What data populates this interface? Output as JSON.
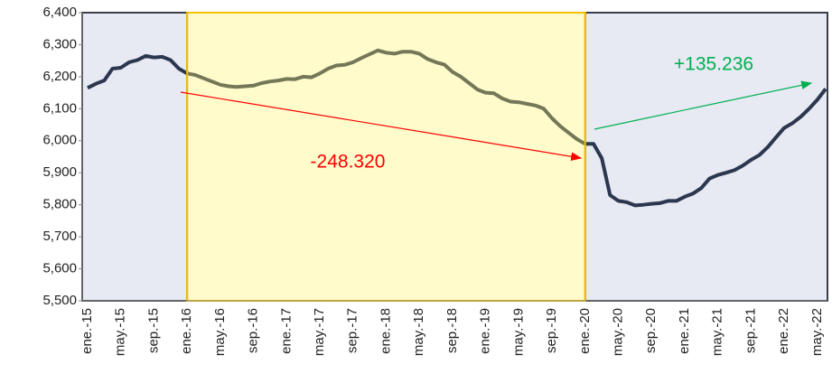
{
  "chart_data": {
    "type": "line",
    "categories": [
      "ene.-15",
      null,
      null,
      null,
      "may.-15",
      null,
      null,
      null,
      "sep.-15",
      null,
      null,
      null,
      "ene.-16",
      null,
      null,
      null,
      "may.-16",
      null,
      null,
      null,
      "sep.-16",
      null,
      null,
      null,
      "ene.-17",
      null,
      null,
      null,
      "may.-17",
      null,
      null,
      null,
      "sep.-17",
      null,
      null,
      null,
      "ene.-18",
      null,
      null,
      null,
      "may.-18",
      null,
      null,
      null,
      "sep.-18",
      null,
      null,
      null,
      "ene.-19",
      null,
      null,
      null,
      "may.-19",
      null,
      null,
      null,
      "sep.-19",
      null,
      null,
      null,
      "ene.-20",
      null,
      null,
      null,
      "may.-20",
      null,
      null,
      null,
      "sep.-20",
      null,
      null,
      null,
      "ene.-21",
      null,
      null,
      null,
      "may.-21",
      null,
      null,
      null,
      "sep.-21",
      null,
      null,
      null,
      "ene.-22",
      null,
      null,
      null,
      "may.-22",
      null
    ],
    "series": [
      {
        "color": "#2b374f",
        "values": [
          6165,
          6178,
          6188,
          6225,
          6228,
          6245,
          6252,
          6265,
          6260,
          6262,
          6252,
          6225,
          6210,
          6205,
          6195,
          6185,
          6175,
          6170,
          6168,
          6170,
          6172,
          6180,
          6185,
          6188,
          6193,
          6192,
          6200,
          6198,
          6210,
          6225,
          6235,
          6237,
          6245,
          6258,
          6270,
          6282,
          6275,
          6272,
          6278,
          6278,
          6272,
          6255,
          6245,
          6238,
          6215,
          6200,
          6180,
          6160,
          6150,
          6148,
          6132,
          6122,
          6120,
          6115,
          6110,
          6100,
          6070,
          6045,
          6025,
          6005,
          5990,
          5990,
          5945,
          5830,
          5812,
          5808,
          5798,
          5800,
          5803,
          5805,
          5812,
          5812,
          5825,
          5835,
          5852,
          5882,
          5893,
          5900,
          5908,
          5922,
          5940,
          5955,
          5980,
          6010,
          6040,
          6055,
          6075,
          6100,
          6128,
          6162
        ]
      }
    ],
    "ylim": [
      5500,
      6400
    ],
    "yticks": [
      {
        "value": 5500,
        "label": "5,500"
      },
      {
        "value": 5600,
        "label": "5,600"
      },
      {
        "value": 5700,
        "label": "5,700"
      },
      {
        "value": 5800,
        "label": "5,800"
      },
      {
        "value": 5900,
        "label": "5,900"
      },
      {
        "value": 6000,
        "label": "6,000"
      },
      {
        "value": 6100,
        "label": "6,100"
      },
      {
        "value": 6200,
        "label": "6,200"
      },
      {
        "value": 6300,
        "label": "6,300"
      },
      {
        "value": 6400,
        "label": "6,400"
      }
    ],
    "regions": [
      {
        "from": "ene.-15",
        "color": "#e7e9f3",
        "border": "#3a3f4a",
        "opacity": 1
      },
      {
        "from": "ene.-16",
        "color": "#fff36a",
        "border": "#f2c200",
        "opacity": 0.35
      },
      {
        "from": "ene.-20",
        "color": "#e7e9f3",
        "border": "#3a3f4a",
        "opacity": 1
      }
    ],
    "annotations": [
      {
        "text": "-248.320",
        "color": "#ff0000"
      },
      {
        "text": "+135.236",
        "color": "#00b050"
      }
    ]
  }
}
